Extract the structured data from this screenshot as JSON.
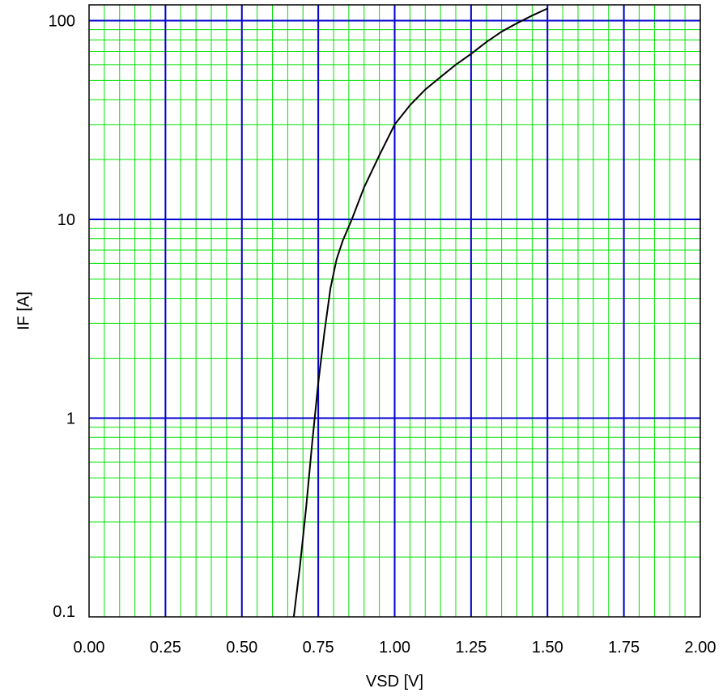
{
  "chart_data": {
    "type": "line",
    "xlabel": "VSD [V]",
    "ylabel": "IF [A]",
    "xlim": [
      0,
      2
    ],
    "ylim": [
      0.1,
      120
    ],
    "y_scale": "log",
    "grid": true,
    "x_ticks": [
      "0.00",
      "0.25",
      "0.50",
      "0.75",
      "1.00",
      "1.25",
      "1.50",
      "1.75",
      "2.00"
    ],
    "y_ticks": [
      "0.1",
      "1",
      "10",
      "100"
    ],
    "colors": {
      "major_grid": "#0000cc",
      "minor_grid": "#00e000",
      "curve": "#000000",
      "frame": "#000000"
    },
    "series": [
      {
        "x": [
          0.67,
          0.69,
          0.71,
          0.73,
          0.75,
          0.77,
          0.79,
          0.81,
          0.83,
          0.86,
          0.9,
          0.95,
          1.0,
          1.05,
          1.1,
          1.15,
          1.2,
          1.25,
          1.3,
          1.35,
          1.4,
          1.45,
          1.5
        ],
        "y": [
          0.1,
          0.18,
          0.35,
          0.75,
          1.5,
          2.7,
          4.5,
          6.3,
          7.8,
          10,
          14.5,
          21,
          30,
          37.5,
          45,
          52,
          60,
          68,
          78,
          88,
          97,
          106,
          115
        ]
      }
    ]
  }
}
